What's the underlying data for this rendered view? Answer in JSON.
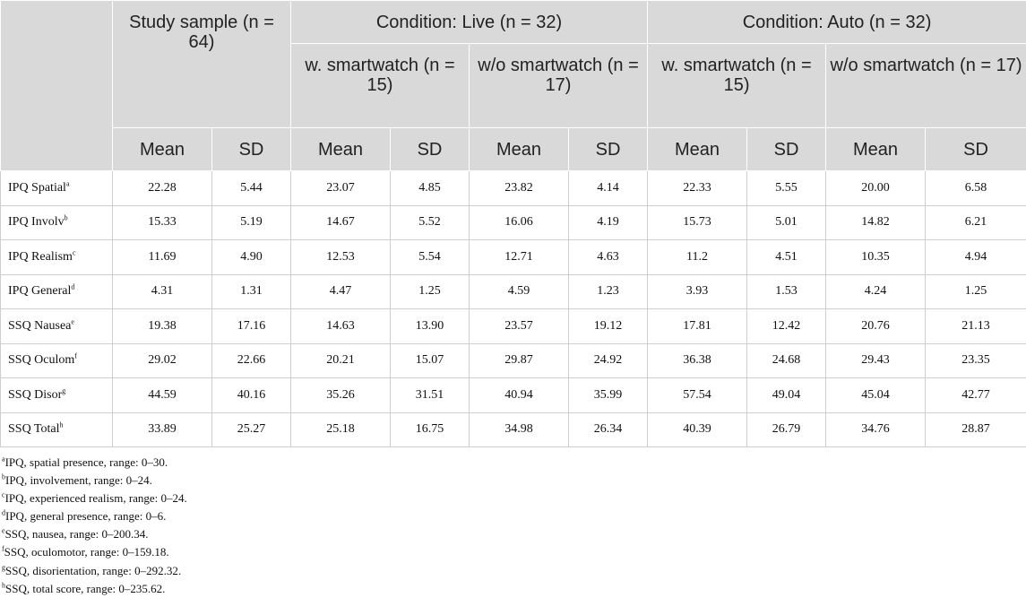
{
  "header": {
    "study": "Study sample (n = 64)",
    "live": "Condition: Live (n = 32)",
    "auto": "Condition: Auto (n = 32)",
    "live_w": "w. smartwatch (n = 15)",
    "live_wo": "w/o smartwatch (n = 17)",
    "auto_w": "w. smartwatch (n = 15)",
    "auto_wo": "w/o smartwatch (n = 17)",
    "mean": "Mean",
    "sd": "SD"
  },
  "rows": [
    {
      "label": "IPQ Spatial",
      "sup": "a",
      "values": [
        "22.28",
        "5.44",
        "23.07",
        "4.85",
        "23.82",
        "4.14",
        "22.33",
        "5.55",
        "20.00",
        "6.58"
      ]
    },
    {
      "label": "IPQ Involv",
      "sup": "b",
      "values": [
        "15.33",
        "5.19",
        "14.67",
        "5.52",
        "16.06",
        "4.19",
        "15.73",
        "5.01",
        "14.82",
        "6.21"
      ]
    },
    {
      "label": "IPQ Realism",
      "sup": "c",
      "values": [
        "11.69",
        "4.90",
        "12.53",
        "5.54",
        "12.71",
        "4.63",
        "11.2",
        "4.51",
        "10.35",
        "4.94"
      ]
    },
    {
      "label": "IPQ General",
      "sup": "d",
      "values": [
        "4.31",
        "1.31",
        "4.47",
        "1.25",
        "4.59",
        "1.23",
        "3.93",
        "1.53",
        "4.24",
        "1.25"
      ]
    },
    {
      "label": "SSQ Nausea",
      "sup": "e",
      "values": [
        "19.38",
        "17.16",
        "14.63",
        "13.90",
        "23.57",
        "19.12",
        "17.81",
        "12.42",
        "20.76",
        "21.13"
      ]
    },
    {
      "label": "SSQ Oculom",
      "sup": "f",
      "values": [
        "29.02",
        "22.66",
        "20.21",
        "15.07",
        "29.87",
        "24.92",
        "36.38",
        "24.68",
        "29.43",
        "23.35"
      ]
    },
    {
      "label": "SSQ Disor",
      "sup": "g",
      "values": [
        "44.59",
        "40.16",
        "35.26",
        "31.51",
        "40.94",
        "35.99",
        "57.54",
        "49.04",
        "45.04",
        "42.77"
      ]
    },
    {
      "label": "SSQ Total",
      "sup": "h",
      "values": [
        "33.89",
        "25.27",
        "25.18",
        "16.75",
        "34.98",
        "26.34",
        "40.39",
        "26.79",
        "34.76",
        "28.87"
      ]
    }
  ],
  "footnotes": [
    {
      "sup": "a",
      "text": "IPQ, spatial presence, range: 0–30."
    },
    {
      "sup": "b",
      "text": "IPQ, involvement, range: 0–24."
    },
    {
      "sup": "c",
      "text": "IPQ, experienced realism, range: 0–24."
    },
    {
      "sup": "d",
      "text": "IPQ, general presence, range: 0–6."
    },
    {
      "sup": "e",
      "text": "SSQ, nausea, range: 0–200.34."
    },
    {
      "sup": "f",
      "text": "SSQ, oculomotor, range: 0–159.18."
    },
    {
      "sup": "g",
      "text": "SSQ, disorientation, range: 0–292.32."
    },
    {
      "sup": "h",
      "text": "SSQ, total score, range: 0–235.62."
    }
  ]
}
